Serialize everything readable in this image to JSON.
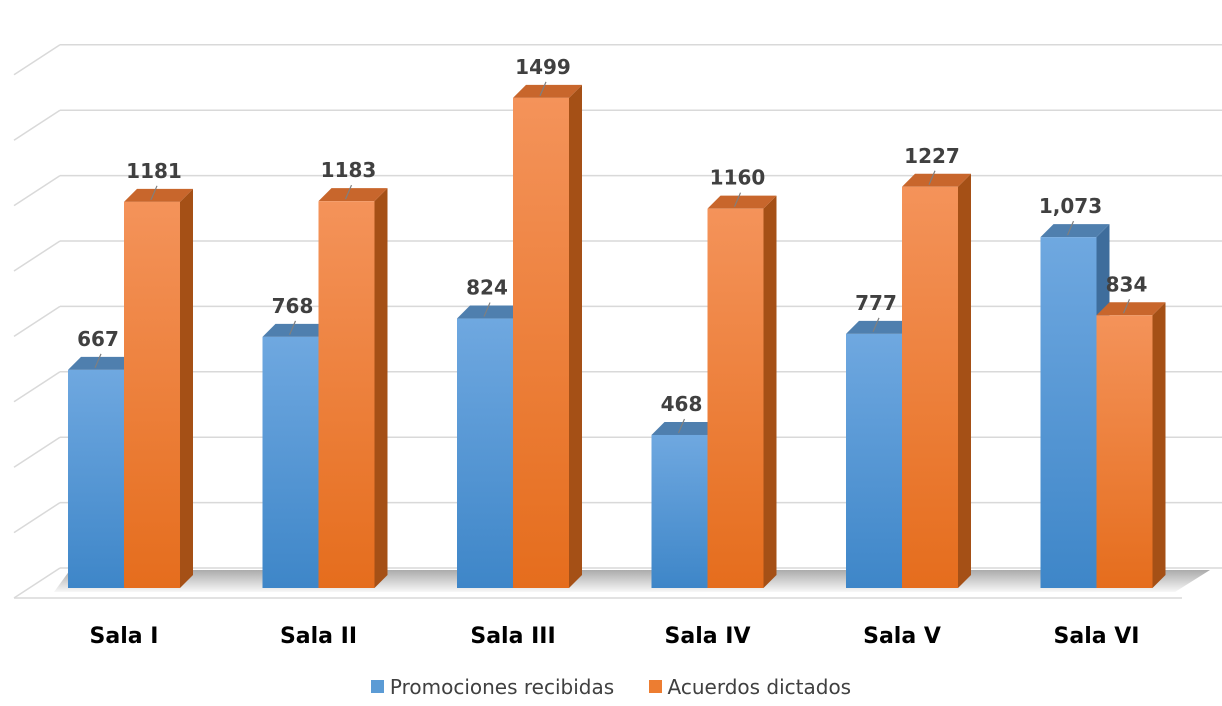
{
  "chart_data": {
    "type": "bar",
    "categories": [
      "Sala I",
      "Sala II",
      "Sala III",
      "Sala IV",
      "Sala V",
      "Sala VI"
    ],
    "series": [
      {
        "name": "Promociones recibidas",
        "values": [
          667,
          768,
          824,
          468,
          777,
          1073
        ],
        "labels": [
          "667",
          "768",
          "824",
          "468",
          "777",
          "1,073"
        ],
        "color": "#5b9bd5"
      },
      {
        "name": "Acuerdos dictados",
        "values": [
          1181,
          1183,
          1499,
          1160,
          1227,
          834
        ],
        "labels": [
          "1181",
          "1183",
          "1499",
          "1160",
          "1227",
          "834"
        ],
        "color": "#ed7d31"
      }
    ],
    "ylim": [
      0,
      1600
    ],
    "grid": true,
    "legend_position": "bottom",
    "style": "3d-clustered-column"
  }
}
